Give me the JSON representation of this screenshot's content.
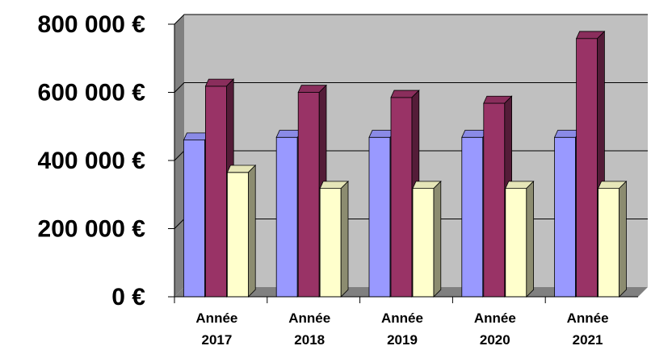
{
  "chart_data": {
    "type": "bar",
    "title": "",
    "xlabel": "",
    "ylabel": "",
    "categories": [
      [
        "Année",
        "2017"
      ],
      [
        "Année",
        "2018"
      ],
      [
        "Année",
        "2019"
      ],
      [
        "Année",
        "2020"
      ],
      [
        "Année",
        "2021"
      ]
    ],
    "series": [
      {
        "color": "#9999ff",
        "values": [
          460000,
          468000,
          468000,
          468000,
          468000
        ]
      },
      {
        "color": "#993366",
        "values": [
          618000,
          600000,
          585000,
          568000,
          758000
        ]
      },
      {
        "color": "#ffffcc",
        "values": [
          365000,
          318000,
          318000,
          318000,
          318000
        ]
      }
    ],
    "ylim": [
      0,
      800000
    ],
    "yticks": [
      {
        "value": 0,
        "label": "0 €"
      },
      {
        "value": 200000,
        "label": "200 000 €"
      },
      {
        "value": 400000,
        "label": "400 000 €"
      },
      {
        "value": 600000,
        "label": "600 000 €"
      },
      {
        "value": 800000,
        "label": "800 000 €"
      }
    ],
    "grid": true,
    "legend": "none",
    "style": "3d-bar",
    "colors": {
      "wall": "#c0c0c0",
      "side_wall": "#808080",
      "floor": "#808080",
      "grid": "#000000"
    }
  }
}
